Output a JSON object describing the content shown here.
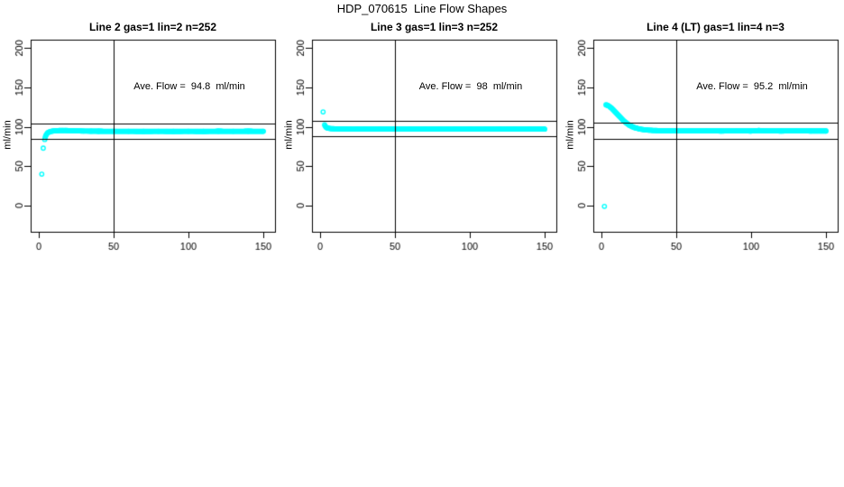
{
  "figure": {
    "title": "HDP_070615  Line Flow Shapes"
  },
  "chart_data": [
    {
      "type": "scatter",
      "title": "Line 2 gas=1 lin=2 n=252",
      "ylabel": "ml/min",
      "xlabel": "",
      "annotation": "Ave. Flow =  94.8  ml/min",
      "ave_flow_ml_min": 94.8,
      "n_points": 252,
      "marker_color": "#00ffff",
      "axis_color": "#000000",
      "grid": false,
      "legend": false,
      "xticks": [
        0,
        50,
        100,
        150
      ],
      "yticks": [
        0,
        50,
        100,
        150,
        200
      ],
      "xlim": [
        -5.5,
        158
      ],
      "ylim": [
        -33,
        245
      ],
      "vline_x": 50,
      "hlines": [
        104.8,
        84.8
      ],
      "outlier_points": [
        [
          2,
          40
        ],
        [
          3,
          73
        ]
      ],
      "band_points": [
        [
          4,
          84
        ],
        [
          4.3,
          86.5
        ],
        [
          4.6,
          88.5
        ],
        [
          5,
          90
        ],
        [
          5.5,
          91.5
        ],
        [
          6,
          92.5
        ],
        [
          7,
          93.6
        ],
        [
          8,
          94.2
        ],
        [
          9,
          94.6
        ],
        [
          10,
          94.9
        ],
        [
          12,
          95.2
        ],
        [
          14,
          95.4
        ],
        [
          16,
          95.5
        ],
        [
          18,
          95.4
        ],
        [
          20,
          95.3
        ],
        [
          23,
          95.1
        ],
        [
          26,
          94.9
        ],
        [
          30,
          94.7
        ],
        [
          35,
          94.6
        ],
        [
          40,
          94.5
        ],
        [
          50,
          94.4
        ],
        [
          60,
          94.4
        ],
        [
          70,
          94.3
        ],
        [
          80,
          94.4
        ],
        [
          90,
          94.3
        ],
        [
          100,
          94.4
        ],
        [
          110,
          94.3
        ],
        [
          120,
          94.5
        ],
        [
          130,
          94.4
        ],
        [
          140,
          94.5
        ],
        [
          150,
          94.4
        ]
      ]
    },
    {
      "type": "scatter",
      "title": "Line 3 gas=1 lin=3 n=252",
      "ylabel": "ml/min",
      "xlabel": "",
      "annotation": "Ave. Flow =  98  ml/min",
      "ave_flow_ml_min": 98,
      "n_points": 252,
      "marker_color": "#00ffff",
      "axis_color": "#000000",
      "grid": false,
      "legend": false,
      "xticks": [
        0,
        50,
        100,
        150
      ],
      "yticks": [
        0,
        50,
        100,
        150,
        200
      ],
      "xlim": [
        -5.5,
        158
      ],
      "ylim": [
        -33,
        245
      ],
      "vline_x": 50,
      "hlines": [
        108,
        88
      ],
      "outlier_points": [
        [
          2,
          119
        ]
      ],
      "band_points": [
        [
          3,
          102.5
        ],
        [
          3.4,
          101
        ],
        [
          3.8,
          100
        ],
        [
          4.3,
          99.2
        ],
        [
          5,
          98.6
        ],
        [
          6,
          98.1
        ],
        [
          7,
          97.9
        ],
        [
          8,
          97.7
        ],
        [
          10,
          97.6
        ],
        [
          12,
          97.5
        ],
        [
          15,
          97.4
        ],
        [
          20,
          97.3
        ],
        [
          25,
          97.3
        ],
        [
          30,
          97.2
        ],
        [
          40,
          97.3
        ],
        [
          50,
          97.2
        ],
        [
          60,
          97.3
        ],
        [
          70,
          97.2
        ],
        [
          80,
          97.3
        ],
        [
          90,
          97.2
        ],
        [
          100,
          97.3
        ],
        [
          110,
          97.2
        ],
        [
          120,
          97.3
        ],
        [
          130,
          97.2
        ],
        [
          140,
          97.3
        ],
        [
          150,
          97.2
        ]
      ]
    },
    {
      "type": "scatter",
      "title": "Line 4 (LT) gas=1 lin=4 n=3",
      "ylabel": "ml/min",
      "xlabel": "",
      "annotation": "Ave. Flow =  95.2  ml/min",
      "ave_flow_ml_min": 95.2,
      "n_points": 3,
      "marker_color": "#00ffff",
      "axis_color": "#000000",
      "grid": false,
      "legend": false,
      "xticks": [
        0,
        50,
        100,
        150
      ],
      "yticks": [
        0,
        50,
        100,
        150,
        200
      ],
      "xlim": [
        -5.5,
        158
      ],
      "ylim": [
        -33,
        245
      ],
      "vline_x": 50,
      "hlines": [
        105.2,
        85.2
      ],
      "outlier_points": [
        [
          2,
          -1
        ]
      ],
      "band_points": [
        [
          3,
          128
        ],
        [
          4,
          127.5
        ],
        [
          5,
          126.5
        ],
        [
          6,
          125
        ],
        [
          7,
          123.5
        ],
        [
          8,
          121.5
        ],
        [
          9,
          119.5
        ],
        [
          10,
          117.5
        ],
        [
          11,
          115.5
        ],
        [
          12,
          113.5
        ],
        [
          13,
          111.5
        ],
        [
          14,
          109.5
        ],
        [
          15,
          107.5
        ],
        [
          16,
          106
        ],
        [
          17,
          104.5
        ],
        [
          18,
          103
        ],
        [
          19,
          101.8
        ],
        [
          20,
          100.8
        ],
        [
          21,
          100
        ],
        [
          22,
          99.2
        ],
        [
          23,
          98.6
        ],
        [
          24,
          98.1
        ],
        [
          25,
          97.6
        ],
        [
          26,
          97.2
        ],
        [
          27,
          96.9
        ],
        [
          28,
          96.6
        ],
        [
          29,
          96.3
        ],
        [
          30,
          96.1
        ],
        [
          32,
          95.8
        ],
        [
          34,
          95.6
        ],
        [
          36,
          95.4
        ],
        [
          38,
          95.3
        ],
        [
          40,
          95.2
        ],
        [
          45,
          95.1
        ],
        [
          50,
          95.0
        ],
        [
          60,
          94.9
        ],
        [
          70,
          94.9
        ],
        [
          80,
          94.8
        ],
        [
          90,
          94.9
        ],
        [
          100,
          94.8
        ],
        [
          105,
          95.4
        ],
        [
          110,
          94.9
        ],
        [
          120,
          94.8
        ],
        [
          130,
          94.9
        ],
        [
          140,
          94.8
        ],
        [
          150,
          94.8
        ]
      ]
    }
  ]
}
